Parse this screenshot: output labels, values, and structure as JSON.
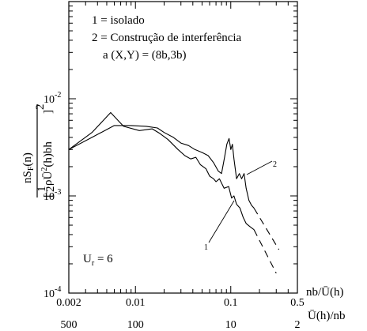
{
  "chart_data": {
    "type": "line",
    "xscale": "log",
    "yscale": "log",
    "xlim": [
      0.002,
      0.5
    ],
    "ylim": [
      0.0001,
      0.1
    ],
    "x_ticks": [
      {
        "value": 0.002,
        "label": "0.002"
      },
      {
        "value": 0.01,
        "label": "0.01"
      },
      {
        "value": 0.1,
        "label": "0.1"
      },
      {
        "value": 0.5,
        "label": "0.5"
      }
    ],
    "x2_ticks": [
      {
        "value": 0.002,
        "label": "500"
      },
      {
        "value": 0.01,
        "label": "100"
      },
      {
        "value": 0.1,
        "label": "10"
      },
      {
        "value": 0.5,
        "label": "2"
      }
    ],
    "y_ticks": [
      {
        "value": 0.0001,
        "base": "10",
        "exp": "-4"
      },
      {
        "value": 0.001,
        "base": "10",
        "exp": "-3"
      },
      {
        "value": 0.01,
        "base": "10",
        "exp": "-2"
      }
    ],
    "xlabel": "nb/Ū(h)",
    "x2label": "Ū(h)/nb",
    "ylabel": {
      "numerator": "nS",
      "num_sub": "F",
      "num_tail": "(n)",
      "den_frac_top": "1",
      "den_frac_bottom": "2",
      "den_rho": "ρŪ",
      "den_sup": "2",
      "den_tail": "(h)bh",
      "den_outer_sup": "2"
    },
    "legend": {
      "line1": "1 = isolado",
      "line2": "2 = Construção de interferência",
      "line3": "a (X,Y) = (8b,3b)"
    },
    "annotation": {
      "base": "U",
      "sub": "r",
      "tail": " = 6"
    },
    "series": [
      {
        "name": "1",
        "points": [
          [
            0.002,
            0.003
          ],
          [
            0.0035,
            0.0045
          ],
          [
            0.0055,
            0.0072
          ],
          [
            0.0075,
            0.0052
          ],
          [
            0.011,
            0.0047
          ],
          [
            0.015,
            0.0049
          ],
          [
            0.018,
            0.0044
          ],
          [
            0.022,
            0.0038
          ],
          [
            0.028,
            0.003
          ],
          [
            0.033,
            0.0026
          ],
          [
            0.038,
            0.0024
          ],
          [
            0.043,
            0.0025
          ],
          [
            0.048,
            0.0021
          ],
          [
            0.055,
            0.0019
          ],
          [
            0.06,
            0.0016
          ],
          [
            0.066,
            0.0015
          ],
          [
            0.07,
            0.0014
          ],
          [
            0.076,
            0.0015
          ],
          [
            0.085,
            0.0012
          ],
          [
            0.095,
            0.00125
          ],
          [
            0.102,
            0.00095
          ],
          [
            0.108,
            0.001
          ],
          [
            0.115,
            0.00082
          ],
          [
            0.125,
            0.00075
          ],
          [
            0.135,
            0.0006
          ],
          [
            0.145,
            0.00052
          ],
          [
            0.16,
            0.00048
          ],
          [
            0.175,
            0.00045
          ]
        ],
        "extrapolated": [
          [
            0.175,
            0.00045
          ],
          [
            0.3,
            0.00016
          ]
        ],
        "label": "1"
      },
      {
        "name": "2",
        "points": [
          [
            0.002,
            0.003
          ],
          [
            0.0035,
            0.004
          ],
          [
            0.006,
            0.0053
          ],
          [
            0.009,
            0.0053
          ],
          [
            0.013,
            0.0052
          ],
          [
            0.017,
            0.005
          ],
          [
            0.02,
            0.0045
          ],
          [
            0.025,
            0.004
          ],
          [
            0.03,
            0.0035
          ],
          [
            0.036,
            0.0033
          ],
          [
            0.042,
            0.003
          ],
          [
            0.05,
            0.0028
          ],
          [
            0.058,
            0.0026
          ],
          [
            0.066,
            0.0022
          ],
          [
            0.074,
            0.0018
          ],
          [
            0.08,
            0.0017
          ],
          [
            0.086,
            0.0025
          ],
          [
            0.091,
            0.0034
          ],
          [
            0.096,
            0.0039
          ],
          [
            0.1,
            0.003
          ],
          [
            0.104,
            0.0034
          ],
          [
            0.108,
            0.0024
          ],
          [
            0.115,
            0.0015
          ],
          [
            0.123,
            0.0017
          ],
          [
            0.13,
            0.0015
          ],
          [
            0.138,
            0.0017
          ],
          [
            0.145,
            0.0012
          ],
          [
            0.155,
            0.0009
          ],
          [
            0.165,
            0.0008
          ],
          [
            0.175,
            0.00075
          ]
        ],
        "extrapolated": [
          [
            0.175,
            0.00075
          ],
          [
            0.32,
            0.00028
          ]
        ],
        "label": "2"
      }
    ]
  }
}
